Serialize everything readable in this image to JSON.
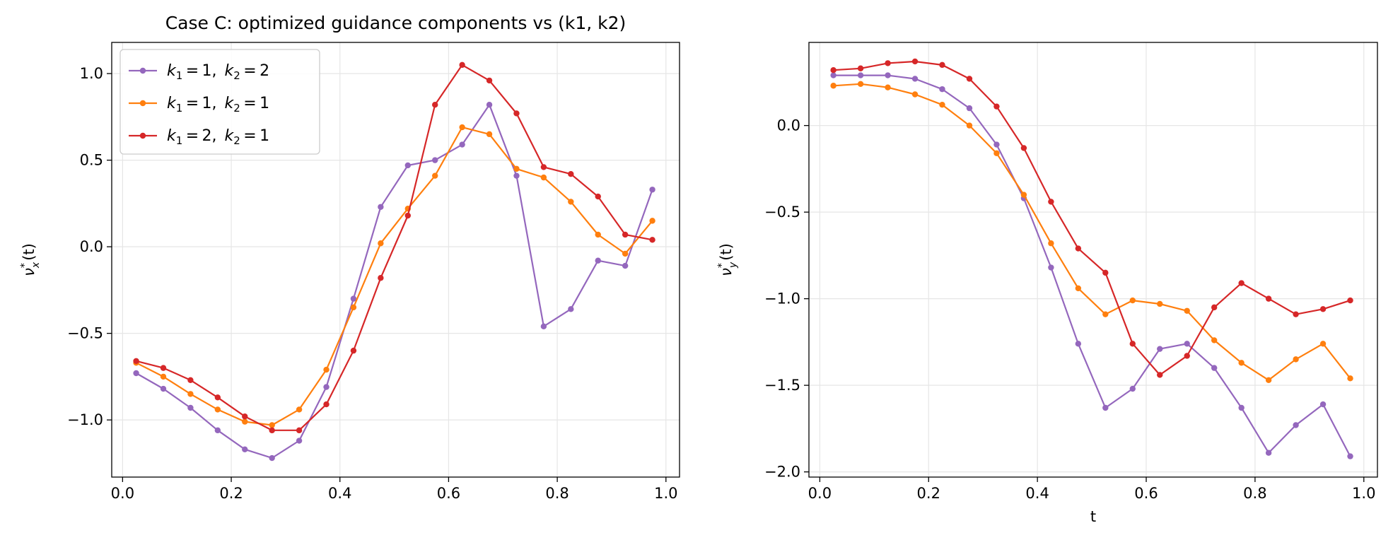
{
  "chart_data": [
    {
      "type": "line",
      "title": "Case C: optimized guidance components vs (k1, k2)",
      "xlabel": "",
      "ylabel_base": "ν",
      "ylabel_sub": "x",
      "ylabel_sup": "*",
      "ylabel_arg": "(t)",
      "xlim": [
        -0.02,
        1.025
      ],
      "ylim": [
        -1.33,
        1.18
      ],
      "xticks": [
        0.0,
        0.2,
        0.4,
        0.6,
        0.8,
        1.0
      ],
      "xtick_labels": [
        "0.0",
        "0.2",
        "0.4",
        "0.6",
        "0.8",
        "1.0"
      ],
      "yticks": [
        -1.0,
        -0.5,
        0.0,
        0.5,
        1.0
      ],
      "ytick_labels": [
        "−1.0",
        "−0.5",
        "0.0",
        "0.5",
        "1.0"
      ],
      "grid": true,
      "legend": "upper left",
      "x": [
        0.025,
        0.075,
        0.125,
        0.175,
        0.225,
        0.275,
        0.325,
        0.375,
        0.425,
        0.475,
        0.525,
        0.575,
        0.625,
        0.675,
        0.725,
        0.775,
        0.825,
        0.875,
        0.925,
        0.975
      ],
      "series": [
        {
          "k1": "1",
          "k2": "2",
          "color": "#9467bd",
          "values": [
            -0.73,
            -0.82,
            -0.93,
            -1.06,
            -1.17,
            -1.22,
            -1.12,
            -0.81,
            -0.3,
            0.23,
            0.47,
            0.5,
            0.59,
            0.82,
            0.41,
            -0.46,
            -0.36,
            -0.08,
            -0.11,
            0.33
          ]
        },
        {
          "k1": "1",
          "k2": "1",
          "color": "#ff7f0e",
          "values": [
            -0.67,
            -0.75,
            -0.85,
            -0.94,
            -1.01,
            -1.03,
            -0.94,
            -0.71,
            -0.35,
            0.02,
            0.22,
            0.41,
            0.69,
            0.65,
            0.45,
            0.4,
            0.26,
            0.07,
            -0.04,
            0.15
          ]
        },
        {
          "k1": "2",
          "k2": "1",
          "color": "#d62728",
          "values": [
            -0.66,
            -0.7,
            -0.77,
            -0.87,
            -0.98,
            -1.06,
            -1.06,
            -0.91,
            -0.6,
            -0.18,
            0.18,
            0.82,
            1.05,
            0.96,
            0.77,
            0.46,
            0.42,
            0.29,
            0.07,
            0.04
          ]
        }
      ]
    },
    {
      "type": "line",
      "title": "",
      "xlabel": "t",
      "ylabel_base": "ν",
      "ylabel_sub": "y",
      "ylabel_sup": "*",
      "ylabel_arg": "(t)",
      "xlim": [
        -0.02,
        1.025
      ],
      "ylim": [
        -2.03,
        0.48
      ],
      "xticks": [
        0.0,
        0.2,
        0.4,
        0.6,
        0.8,
        1.0
      ],
      "xtick_labels": [
        "0.0",
        "0.2",
        "0.4",
        "0.6",
        "0.8",
        "1.0"
      ],
      "yticks": [
        -2.0,
        -1.5,
        -1.0,
        -0.5,
        0.0
      ],
      "ytick_labels": [
        "−2.0",
        "−1.5",
        "−1.0",
        "−0.5",
        "0.0"
      ],
      "grid": true,
      "x": [
        0.025,
        0.075,
        0.125,
        0.175,
        0.225,
        0.275,
        0.325,
        0.375,
        0.425,
        0.475,
        0.525,
        0.575,
        0.625,
        0.675,
        0.725,
        0.775,
        0.825,
        0.875,
        0.925,
        0.975
      ],
      "series": [
        {
          "k1": "1",
          "k2": "2",
          "color": "#9467bd",
          "values": [
            0.29,
            0.29,
            0.29,
            0.27,
            0.21,
            0.1,
            -0.11,
            -0.42,
            -0.82,
            -1.26,
            -1.63,
            -1.52,
            -1.29,
            -1.26,
            -1.4,
            -1.63,
            -1.89,
            -1.73,
            -1.61,
            -1.91
          ]
        },
        {
          "k1": "1",
          "k2": "1",
          "color": "#ff7f0e",
          "values": [
            0.23,
            0.24,
            0.22,
            0.18,
            0.12,
            0.0,
            -0.16,
            -0.4,
            -0.68,
            -0.94,
            -1.09,
            -1.01,
            -1.03,
            -1.07,
            -1.24,
            -1.37,
            -1.47,
            -1.35,
            -1.26,
            -1.46
          ]
        },
        {
          "k1": "2",
          "k2": "1",
          "color": "#d62728",
          "values": [
            0.32,
            0.33,
            0.36,
            0.37,
            0.35,
            0.27,
            0.11,
            -0.13,
            -0.44,
            -0.71,
            -0.85,
            -1.26,
            -1.44,
            -1.33,
            -1.05,
            -0.91,
            -1.0,
            -1.09,
            -1.06,
            -1.01
          ]
        }
      ]
    }
  ]
}
